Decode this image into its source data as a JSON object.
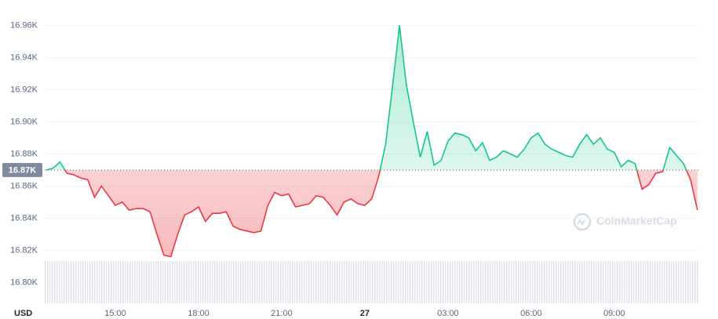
{
  "chart_data": {
    "type": "line",
    "categories": [
      null,
      null,
      null,
      null,
      null,
      null,
      null,
      null,
      null,
      null,
      "15:00",
      null,
      null,
      null,
      null,
      null,
      null,
      null,
      null,
      null,
      null,
      null,
      "18:00",
      null,
      null,
      null,
      null,
      null,
      null,
      null,
      null,
      null,
      null,
      null,
      "21:00",
      null,
      null,
      null,
      null,
      null,
      null,
      null,
      null,
      null,
      null,
      null,
      "27",
      null,
      null,
      null,
      null,
      null,
      null,
      null,
      null,
      null,
      null,
      null,
      "03:00",
      null,
      null,
      null,
      null,
      null,
      null,
      null,
      null,
      null,
      null,
      null,
      "06:00",
      null,
      null,
      null,
      null,
      null,
      null,
      null,
      null,
      null,
      null,
      null,
      "09:00",
      null,
      null,
      null,
      null,
      null,
      null,
      null,
      null,
      null,
      null,
      null,
      null
    ],
    "series": [
      {
        "name": "USD",
        "color": "#16c784",
        "below_color": "#ea3943",
        "values": [
          16.87,
          16.871,
          16.875,
          16.868,
          16.867,
          16.865,
          16.864,
          16.853,
          16.86,
          16.854,
          16.848,
          16.85,
          16.845,
          16.846,
          16.846,
          16.844,
          16.83,
          16.817,
          16.816,
          16.83,
          16.842,
          16.844,
          16.847,
          16.838,
          16.843,
          16.843,
          16.844,
          16.835,
          16.833,
          16.832,
          16.831,
          16.832,
          16.848,
          16.856,
          16.854,
          16.855,
          16.847,
          16.848,
          16.849,
          16.854,
          16.853,
          16.848,
          16.842,
          16.85,
          16.852,
          16.849,
          16.848,
          16.852,
          16.866,
          16.886,
          16.922,
          16.96,
          16.923,
          16.9,
          16.878,
          16.894,
          16.873,
          16.876,
          16.888,
          16.893,
          16.892,
          16.89,
          16.882,
          16.887,
          16.876,
          16.878,
          16.882,
          16.88,
          16.878,
          16.883,
          16.89,
          16.893,
          16.886,
          16.883,
          16.881,
          16.879,
          16.878,
          16.886,
          16.892,
          16.886,
          16.89,
          16.883,
          16.881,
          16.872,
          16.876,
          16.874,
          16.858,
          16.861,
          16.868,
          16.869,
          16.884,
          16.879,
          16.874,
          16.864,
          16.845
        ]
      }
    ],
    "reference_line": {
      "value": 16.87,
      "label": "16.87K"
    },
    "ylim": [
      16.787,
      16.969
    ],
    "yticks": [
      {
        "value": 16.8,
        "label": "16.80K"
      },
      {
        "value": 16.82,
        "label": "16.82K"
      },
      {
        "value": 16.84,
        "label": "16.84K"
      },
      {
        "value": 16.86,
        "label": "16.86K"
      },
      {
        "value": 16.88,
        "label": "16.88K"
      },
      {
        "value": 16.9,
        "label": "16.90K"
      },
      {
        "value": 16.92,
        "label": "16.92K"
      },
      {
        "value": 16.94,
        "label": "16.94K"
      },
      {
        "value": 16.96,
        "label": "16.96K"
      }
    ],
    "grid": true,
    "currency_label": "USD",
    "watermark": "CoinMarketCap"
  }
}
